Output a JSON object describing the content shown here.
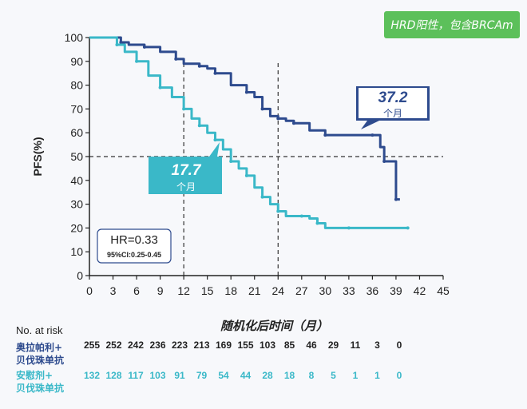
{
  "subgroup_label": "HRD阳性，包含BRCAm",
  "chart_data": {
    "type": "line",
    "title": "",
    "xlabel": "随机化后时间（月）",
    "ylabel": "PFS(%)",
    "xlim": [
      0,
      45
    ],
    "ylim": [
      0,
      100
    ],
    "x_ticks": [
      "0",
      "3",
      "6",
      "9",
      "12",
      "15",
      "18",
      "21",
      "24",
      "27",
      "30",
      "33",
      "36",
      "39",
      "42",
      "45"
    ],
    "y_ticks": [
      "0",
      "10",
      "20",
      "30",
      "40",
      "50",
      "60",
      "70",
      "80",
      "90",
      "100"
    ],
    "colors": {
      "olaparib": "#2e4b8e",
      "placebo": "#3ab8c8"
    },
    "series": [
      {
        "key": "olaparib",
        "values": [
          [
            0,
            100
          ],
          [
            3,
            100
          ],
          [
            4,
            98
          ],
          [
            5,
            97
          ],
          [
            7,
            96
          ],
          [
            9,
            94
          ],
          [
            11,
            91
          ],
          [
            12,
            89
          ],
          [
            14,
            88
          ],
          [
            15,
            87
          ],
          [
            16,
            85
          ],
          [
            18,
            80
          ],
          [
            20,
            77
          ],
          [
            21,
            75
          ],
          [
            22,
            70
          ],
          [
            23,
            67
          ],
          [
            24,
            66
          ],
          [
            25,
            65
          ],
          [
            26,
            64
          ],
          [
            28,
            61
          ],
          [
            30,
            59
          ],
          [
            32,
            59
          ],
          [
            36,
            59
          ],
          [
            37,
            54
          ],
          [
            37.5,
            48
          ],
          [
            39,
            48
          ],
          [
            39,
            32
          ],
          [
            39.5,
            32
          ]
        ]
      },
      {
        "key": "placebo",
        "values": [
          [
            0,
            100
          ],
          [
            2.5,
            100
          ],
          [
            3.5,
            97
          ],
          [
            4.5,
            94
          ],
          [
            6,
            90
          ],
          [
            7.5,
            84
          ],
          [
            9,
            79
          ],
          [
            10.5,
            75
          ],
          [
            12,
            70
          ],
          [
            13,
            66
          ],
          [
            14,
            63
          ],
          [
            15,
            60
          ],
          [
            16,
            57
          ],
          [
            17,
            53
          ],
          [
            18,
            48
          ],
          [
            19,
            45
          ],
          [
            20,
            42
          ],
          [
            21,
            37
          ],
          [
            22,
            33
          ],
          [
            23,
            30
          ],
          [
            24,
            27
          ],
          [
            25,
            25
          ],
          [
            27,
            25
          ],
          [
            28,
            24
          ],
          [
            29,
            22
          ],
          [
            30,
            20
          ],
          [
            33,
            20
          ],
          [
            35,
            20
          ],
          [
            40.5,
            20
          ]
        ]
      }
    ],
    "medians": [
      {
        "series": "olaparib",
        "x": 24,
        "value": "37.2",
        "unit": "个月"
      },
      {
        "series": "placebo",
        "x": 12,
        "value": "17.7",
        "unit": "个月"
      }
    ],
    "reference_line_y": 50,
    "hazard_ratio": {
      "hr": "HR=0.33",
      "ci": "95%CI:0.25-0.45"
    },
    "at_risk": {
      "title": "No. at risk",
      "rows": [
        {
          "series": "olaparib",
          "label_line1": "奥拉帕利+",
          "label_line2": "贝伐珠单抗",
          "counts": [
            "255",
            "252",
            "242",
            "236",
            "223",
            "213",
            "169",
            "155",
            "103",
            "85",
            "46",
            "29",
            "11",
            "3",
            "0"
          ]
        },
        {
          "series": "placebo",
          "label_line1": "安慰剂+",
          "label_line2": "贝伐珠单抗",
          "counts": [
            "132",
            "128",
            "117",
            "103",
            "91",
            "79",
            "54",
            "44",
            "28",
            "18",
            "8",
            "5",
            "1",
            "1",
            "0"
          ]
        }
      ]
    }
  }
}
